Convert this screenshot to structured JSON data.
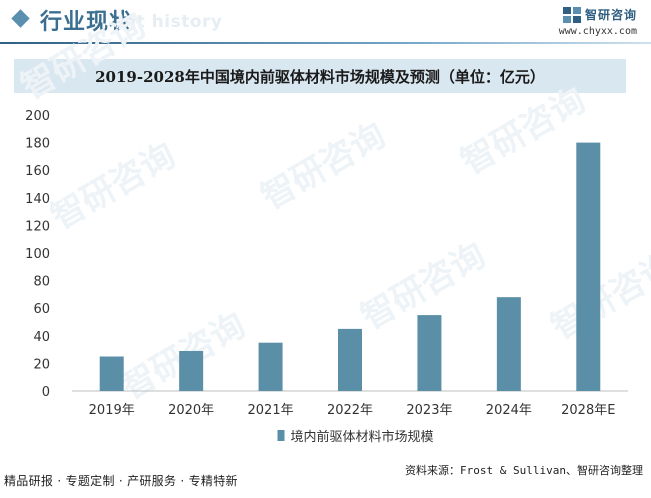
{
  "header": {
    "section_title": "行业现状",
    "section_title_ghost": "ent history",
    "brand_name": "智研咨询",
    "brand_url": "www.chyxx.com"
  },
  "watermark": {
    "text": "智研咨询"
  },
  "chart_data": {
    "type": "bar",
    "title": "2019-2028年中国境内前驱体材料市场规模及预测（单位：亿元）",
    "categories": [
      "2019年",
      "2020年",
      "2021年",
      "2022年",
      "2023年",
      "2024年",
      "2028年E"
    ],
    "series": [
      {
        "name": "境内前驱体材料市场规模",
        "values": [
          25,
          29,
          35,
          45,
          55,
          68,
          180
        ]
      }
    ],
    "ylim": [
      0,
      200
    ],
    "yticks": [
      0,
      20,
      40,
      60,
      80,
      100,
      120,
      140,
      160,
      180,
      200
    ],
    "grid": false,
    "legend_position": "bottom",
    "bar_color": "#5b8fa8",
    "xlabel": "",
    "ylabel": ""
  },
  "footer": {
    "tagline": "精品研报 · 专题定制 · 产研服务 · 专精特新",
    "source": "资料来源：Frost & Sullivan、智研咨询整理"
  }
}
